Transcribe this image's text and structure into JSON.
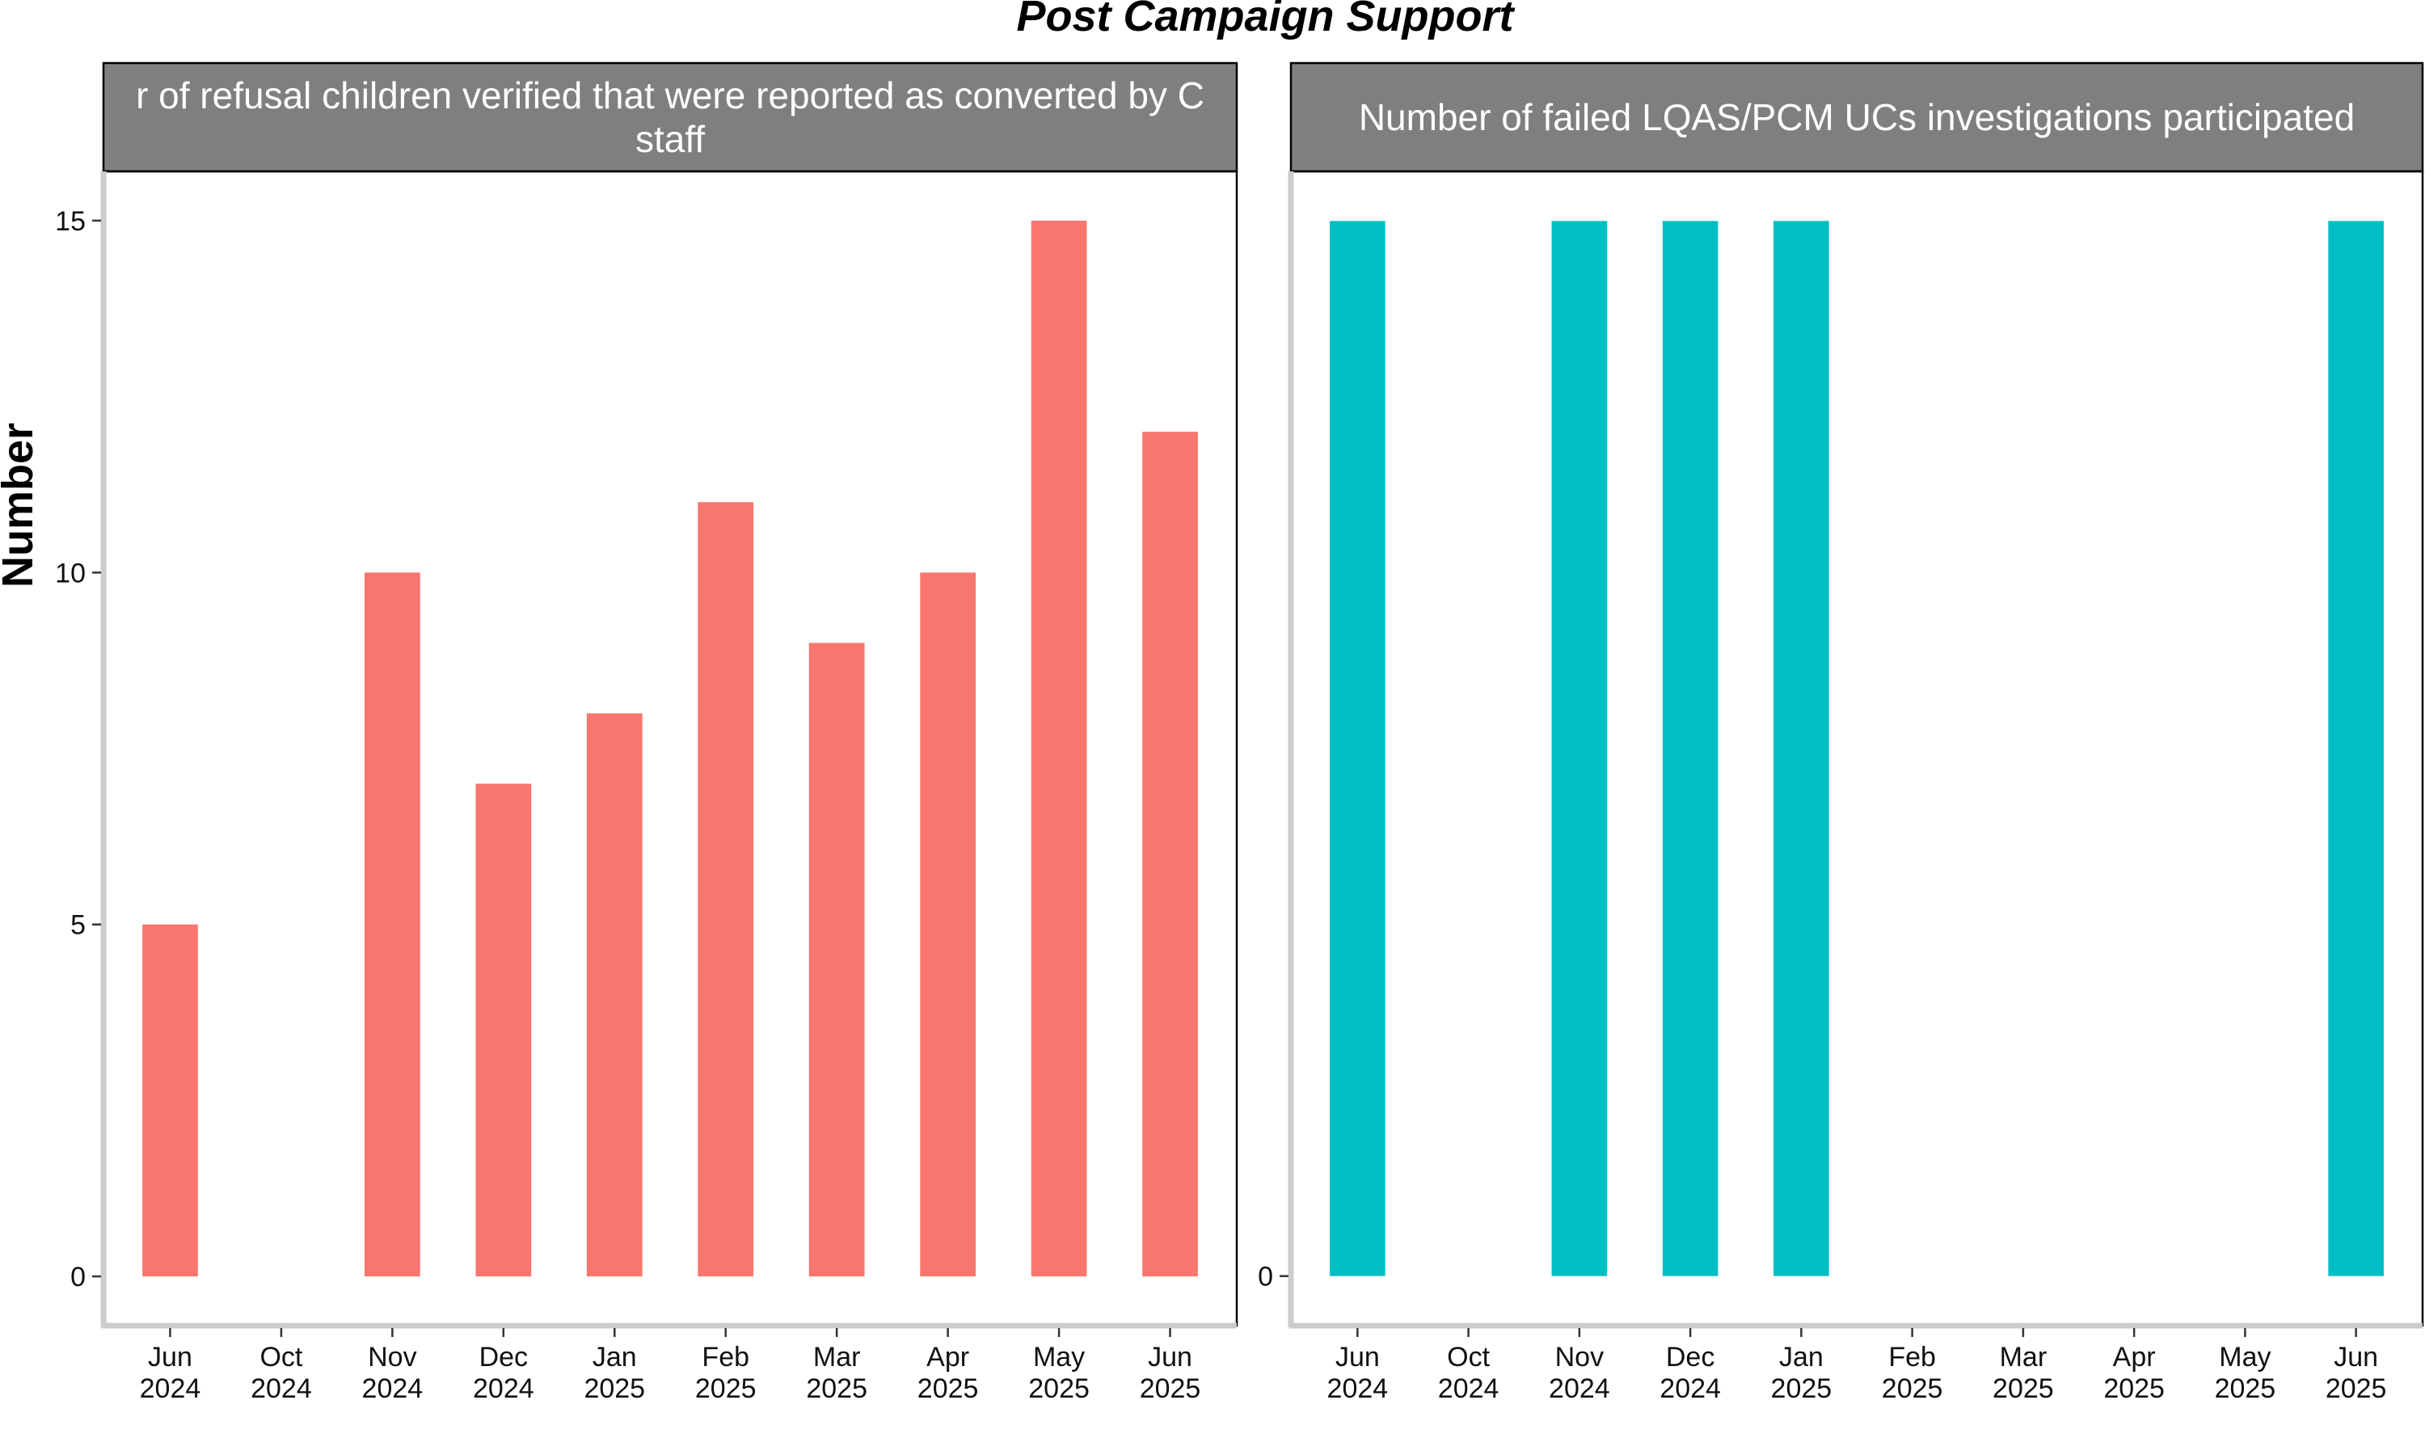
{
  "chart_data": {
    "type": "bar",
    "title": "Post Campaign Support",
    "ylabel": "Number",
    "xlabel": "",
    "grid": false,
    "legend": "none",
    "categories": [
      "Jun 2024",
      "Oct 2024",
      "Nov 2024",
      "Dec 2024",
      "Jan 2025",
      "Feb 2025",
      "Mar 2025",
      "Apr 2025",
      "May 2025",
      "Jun 2025"
    ],
    "category_ticks": [
      {
        "month": "Jun",
        "year": "2024"
      },
      {
        "month": "Oct",
        "year": "2024"
      },
      {
        "month": "Nov",
        "year": "2024"
      },
      {
        "month": "Dec",
        "year": "2024"
      },
      {
        "month": "Jan",
        "year": "2025"
      },
      {
        "month": "Feb",
        "year": "2025"
      },
      {
        "month": "Mar",
        "year": "2025"
      },
      {
        "month": "Apr",
        "year": "2025"
      },
      {
        "month": "May",
        "year": "2025"
      },
      {
        "month": "Jun",
        "year": "2025"
      }
    ],
    "panels": [
      {
        "strip_lines": [
          "r of refusal children verified that were reported as converted by C",
          "staff"
        ],
        "color": "#F8766D",
        "values": [
          5,
          null,
          10,
          7,
          8,
          11,
          9,
          10,
          15,
          12
        ],
        "ylim": [
          -0.7,
          15.7
        ],
        "yticks": [
          0,
          5,
          10,
          15
        ]
      },
      {
        "strip_lines": [
          "Number of failed LQAS/PCM UCs investigations participated"
        ],
        "color": "#00BFC4",
        "values": [
          1,
          null,
          1,
          1,
          1,
          null,
          null,
          null,
          null,
          1
        ],
        "ylim": [
          -0.047,
          1.047
        ],
        "yticks": [
          0
        ],
        "plotted_as": 15
      }
    ]
  }
}
